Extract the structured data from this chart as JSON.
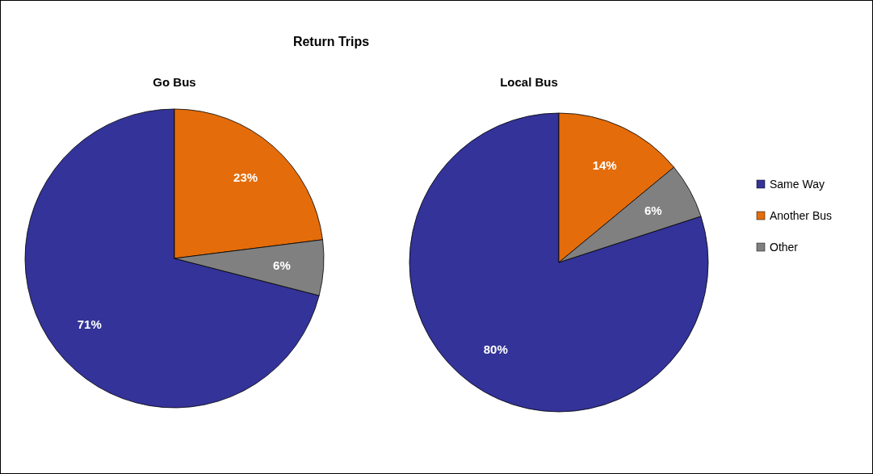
{
  "chart_data": [
    {
      "type": "pie",
      "title": "Go Bus",
      "annotations": [
        "Return Trips"
      ],
      "categories": [
        null,
        null,
        null
      ],
      "values": [
        71,
        23,
        6
      ],
      "value_labels": [
        "71%",
        "23%",
        "6%"
      ],
      "colors": [
        "#333399",
        "#e46c0a",
        "#808080"
      ],
      "legend": false
    },
    {
      "type": "pie",
      "title": "Local Bus",
      "categories": [
        "Same Way",
        "Another Bus",
        "Other"
      ],
      "values": [
        80,
        14,
        6
      ],
      "value_labels": [
        "80%",
        "14%",
        "6%"
      ],
      "colors": [
        "#333399",
        "#e46c0a",
        "#808080"
      ],
      "legend": "right"
    }
  ]
}
